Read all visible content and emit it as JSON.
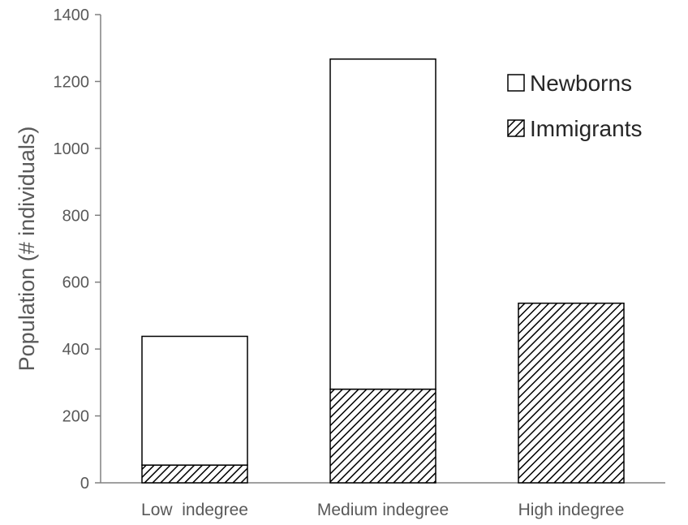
{
  "chart_data": {
    "type": "bar",
    "stacked": true,
    "categories": [
      "Low  indegree",
      "Medium indegree",
      "High indegree"
    ],
    "series": [
      {
        "name": "Immigrants",
        "values": [
          53,
          280,
          537
        ],
        "fill": "hatch"
      },
      {
        "name": "Newborns",
        "values": [
          385,
          987,
          0
        ],
        "fill": "#ffffff"
      }
    ],
    "title": "",
    "xlabel": "",
    "ylabel": "Population (# individuals)",
    "ylim": [
      0,
      1400
    ],
    "yticks": [
      0,
      200,
      400,
      600,
      800,
      1000,
      1200,
      1400
    ],
    "grid": false,
    "legend": {
      "placement": "top-right",
      "order": [
        "Newborns",
        "Immigrants"
      ]
    },
    "colors": {
      "axis": "#808080",
      "text": "#595959",
      "bar_edge": "#000000"
    }
  }
}
